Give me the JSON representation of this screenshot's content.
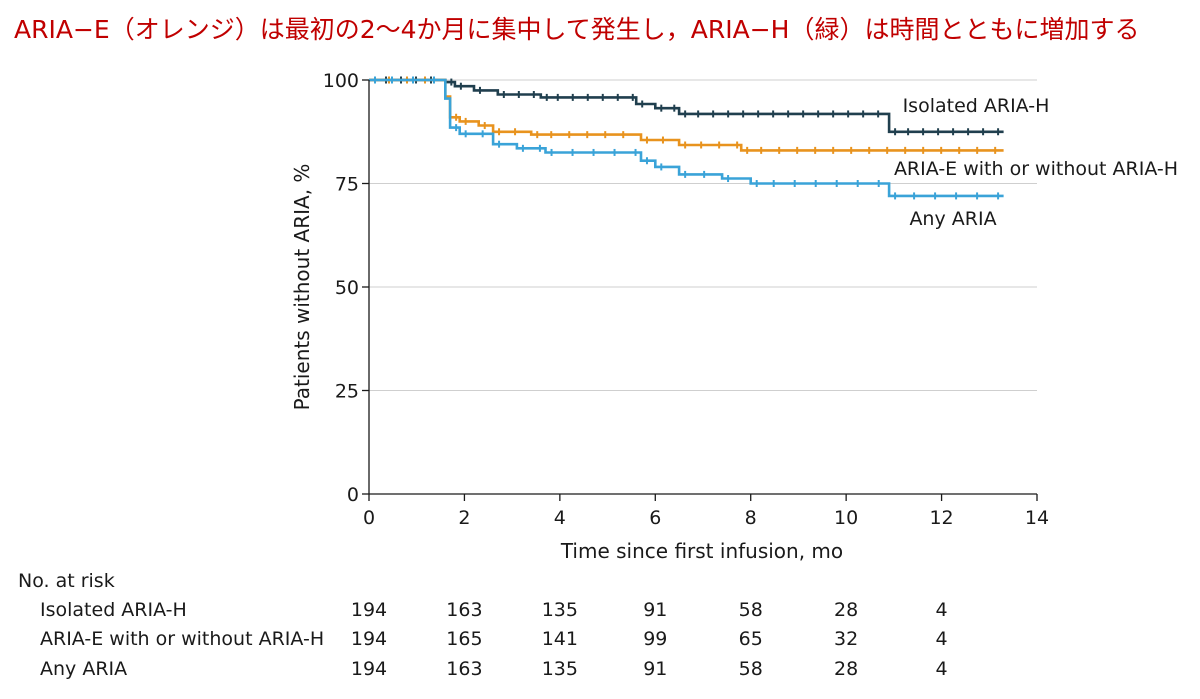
{
  "headline": "ARIA−E（オレンジ）は最初の2〜4か月に集中して発生し，ARIA−H（緑）は時間とともに増加する",
  "chart_data": {
    "type": "line",
    "title": "",
    "xlabel": "Time since first infusion, mo",
    "ylabel": "Patients without ARIA, %",
    "xlim": [
      0,
      14
    ],
    "ylim": [
      0,
      100
    ],
    "xticks": [
      "0",
      "2",
      "4",
      "6",
      "8",
      "10",
      "12",
      "14"
    ],
    "yticks": [
      "0",
      "25",
      "50",
      "75",
      "100"
    ],
    "grid": true,
    "legend": "inline-right",
    "series": [
      {
        "name": "Isolated ARIA-H",
        "color": "#203f4e",
        "points": [
          [
            0,
            100
          ],
          [
            1.6,
            100
          ],
          [
            1.6,
            99.5
          ],
          [
            1.8,
            99.5
          ],
          [
            1.8,
            98.5
          ],
          [
            2.2,
            98.5
          ],
          [
            2.2,
            97.5
          ],
          [
            2.7,
            97.5
          ],
          [
            2.7,
            96.5
          ],
          [
            3.6,
            96.5
          ],
          [
            3.6,
            95.8
          ],
          [
            5.6,
            95.8
          ],
          [
            5.6,
            94.2
          ],
          [
            6.0,
            94.2
          ],
          [
            6.0,
            93.2
          ],
          [
            6.5,
            93.2
          ],
          [
            6.5,
            91.8
          ],
          [
            10.9,
            91.8
          ],
          [
            10.9,
            87.5
          ],
          [
            13.3,
            87.5
          ]
        ]
      },
      {
        "name": "ARIA-E with or without ARIA-H",
        "color": "#e8931e",
        "points": [
          [
            0,
            100
          ],
          [
            1.6,
            100
          ],
          [
            1.6,
            96
          ],
          [
            1.7,
            96
          ],
          [
            1.7,
            91
          ],
          [
            1.9,
            91
          ],
          [
            1.9,
            90
          ],
          [
            2.3,
            90
          ],
          [
            2.3,
            89
          ],
          [
            2.6,
            89
          ],
          [
            2.6,
            87.5
          ],
          [
            3.4,
            87.5
          ],
          [
            3.4,
            86.8
          ],
          [
            5.7,
            86.8
          ],
          [
            5.7,
            85.5
          ],
          [
            6.5,
            85.5
          ],
          [
            6.5,
            84.3
          ],
          [
            7.8,
            84.3
          ],
          [
            7.8,
            83
          ],
          [
            13.3,
            83
          ]
        ]
      },
      {
        "name": "Any ARIA",
        "color": "#3aa3d8",
        "points": [
          [
            0,
            100
          ],
          [
            1.6,
            100
          ],
          [
            1.6,
            95.5
          ],
          [
            1.7,
            95.5
          ],
          [
            1.7,
            88.5
          ],
          [
            1.9,
            88.5
          ],
          [
            1.9,
            87
          ],
          [
            2.6,
            87
          ],
          [
            2.6,
            84.5
          ],
          [
            3.1,
            84.5
          ],
          [
            3.1,
            83.5
          ],
          [
            3.7,
            83.5
          ],
          [
            3.7,
            82.5
          ],
          [
            5.7,
            82.5
          ],
          [
            5.7,
            80.5
          ],
          [
            6.0,
            80.5
          ],
          [
            6.0,
            79
          ],
          [
            6.5,
            79
          ],
          [
            6.5,
            77.2
          ],
          [
            7.4,
            77.2
          ],
          [
            7.4,
            76.2
          ],
          [
            8.0,
            76.2
          ],
          [
            8.0,
            75
          ],
          [
            10.9,
            75
          ],
          [
            10.9,
            72
          ],
          [
            13.3,
            72
          ]
        ]
      }
    ],
    "at_risk": {
      "title": "No. at risk",
      "times": [
        0,
        2,
        4,
        6,
        8,
        10,
        12
      ],
      "rows": [
        {
          "label": "Isolated ARIA-H",
          "values": [
            "194",
            "163",
            "135",
            "91",
            "58",
            "28",
            "4"
          ]
        },
        {
          "label": "ARIA-E with or without ARIA-H",
          "values": [
            "194",
            "165",
            "141",
            "99",
            "65",
            "32",
            "4"
          ]
        },
        {
          "label": "Any ARIA",
          "values": [
            "194",
            "163",
            "135",
            "91",
            "58",
            "28",
            "4"
          ]
        }
      ]
    }
  }
}
